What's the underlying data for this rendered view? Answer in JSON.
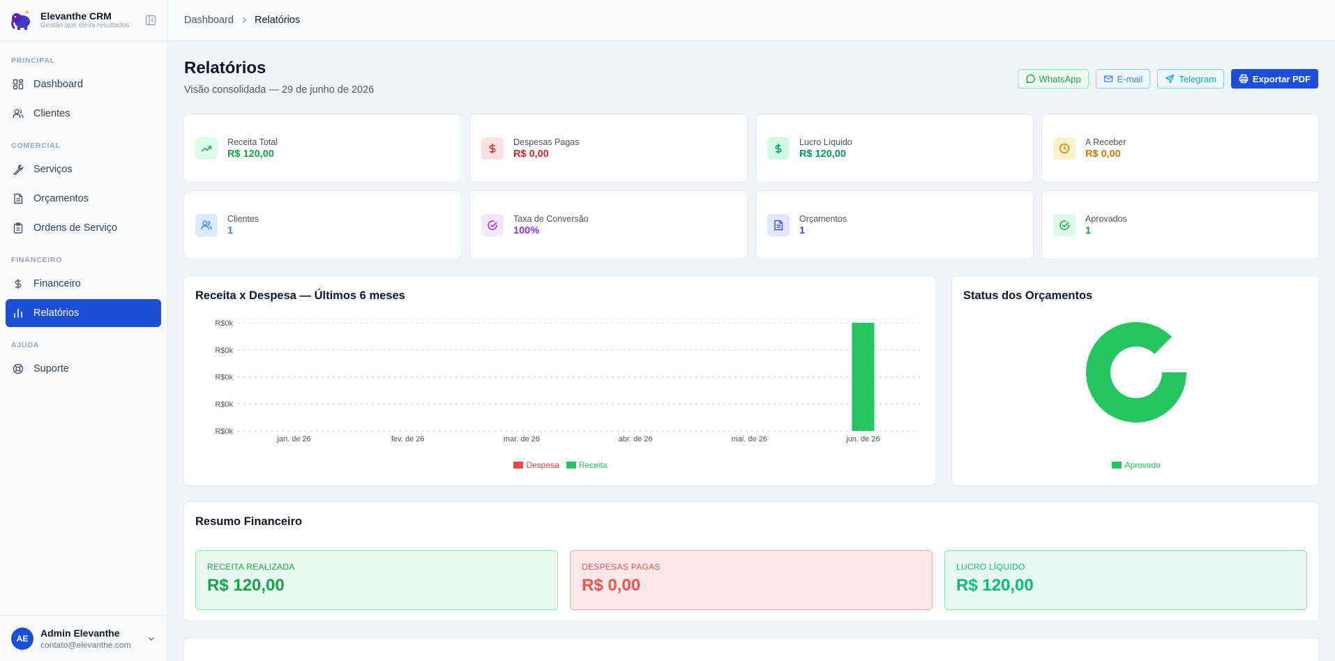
{
  "brand": {
    "name": "Elevanthe CRM",
    "tagline": "Gestão que eleva resultados"
  },
  "nav": {
    "sections": [
      {
        "label": "PRINCIPAL",
        "items": [
          {
            "label": "Dashboard",
            "icon": "grid-icon"
          },
          {
            "label": "Clientes",
            "icon": "users-icon"
          }
        ]
      },
      {
        "label": "COMERCIAL",
        "items": [
          {
            "label": "Serviços",
            "icon": "wrench-icon"
          },
          {
            "label": "Orçamentos",
            "icon": "file-text-icon"
          },
          {
            "label": "Ordens de Serviço",
            "icon": "clipboard-icon"
          }
        ]
      },
      {
        "label": "FINANCEIRO",
        "items": [
          {
            "label": "Financeiro",
            "icon": "dollar-icon"
          },
          {
            "label": "Relatórios",
            "icon": "bar-chart-icon",
            "active": true
          }
        ]
      },
      {
        "label": "AJUDA",
        "items": [
          {
            "label": "Suporte",
            "icon": "life-buoy-icon"
          }
        ]
      }
    ]
  },
  "user": {
    "initials": "AE",
    "name": "Admin Elevanthe",
    "email": "contato@elevanthe.com"
  },
  "breadcrumb": {
    "home": "Dashboard",
    "current": "Relatórios"
  },
  "page": {
    "title": "Relatórios",
    "subtitle": "Visão consolidada — 29 de junho de 2026"
  },
  "actions": {
    "whatsapp": "WhatsApp",
    "email": "E-mail",
    "telegram": "Telegram",
    "export": "Exportar PDF"
  },
  "kpis": [
    {
      "label": "Receita Total",
      "value": "R$ 120,00",
      "color": "#16a34a",
      "bg": "#dcfce7",
      "icon": "trending-up-icon"
    },
    {
      "label": "Despesas Pagas",
      "value": "R$ 0,00",
      "color": "#dc2626",
      "bg": "#fee2e2",
      "icon": "dollar-icon"
    },
    {
      "label": "Lucro Líquido",
      "value": "R$ 120,00",
      "color": "#059669",
      "bg": "#d1fae5",
      "icon": "dollar-icon"
    },
    {
      "label": "A Receber",
      "value": "R$ 0,00",
      "color": "#d97706",
      "bg": "#fef3c7",
      "icon": "clock-icon"
    },
    {
      "label": "Clientes",
      "value": "1",
      "color": "#3b82f6",
      "bg": "#dbeafe",
      "icon": "users-icon"
    },
    {
      "label": "Taxa de Conversão",
      "value": "100%",
      "color": "#9333ea",
      "bg": "#f3e8ff",
      "icon": "check-circle-icon"
    },
    {
      "label": "Orçamentos",
      "value": "1",
      "color": "#4f46e5",
      "bg": "#e0e7ff",
      "icon": "file-text-icon"
    },
    {
      "label": "Aprovados",
      "value": "1",
      "color": "#16a34a",
      "bg": "#dcfce7",
      "icon": "check-circle-icon"
    }
  ],
  "charts": {
    "bar_title": "Receita x Despesa — Últimos 6 meses",
    "donut_title": "Status dos Orçamentos"
  },
  "chart_data": [
    {
      "type": "bar",
      "title": "Receita x Despesa — Últimos 6 meses",
      "categories": [
        "jan. de 26",
        "fev. de 26",
        "mar. de 26",
        "abr. de 26",
        "mai. de 26",
        "jun. de 26"
      ],
      "series": [
        {
          "name": "Despesa",
          "color": "#ef4444",
          "values": [
            0,
            0,
            0,
            0,
            0,
            0
          ]
        },
        {
          "name": "Receita",
          "color": "#22c55e",
          "values": [
            0,
            0,
            0,
            0,
            0,
            120
          ]
        }
      ],
      "yticks": [
        "R$0k",
        "R$0k",
        "R$0k",
        "R$0k",
        "R$0k"
      ],
      "ylim": [
        0,
        120
      ],
      "grid": true,
      "legend": "bottom-center"
    },
    {
      "type": "pie",
      "title": "Status dos Orçamentos",
      "slices": [
        {
          "name": "Aprovado",
          "value": 1,
          "color": "#22c55e"
        }
      ],
      "legend": "bottom-center"
    }
  ],
  "summary": {
    "title": "Resumo Financeiro",
    "boxes": [
      {
        "label": "RECEITA REALIZADA",
        "value": "R$ 120,00",
        "color": "#16a34a",
        "bg": "#e8f9ee",
        "border": "#86efac"
      },
      {
        "label": "DESPESAS PAGAS",
        "value": "R$ 0,00",
        "color": "#f05252",
        "bg": "#fde8e8",
        "border": "#fca5a5"
      },
      {
        "label": "LUCRO LÍQUIDO",
        "value": "R$ 120,00",
        "color": "#10b981",
        "bg": "#e6f7f0",
        "border": "#86efac"
      }
    ]
  }
}
